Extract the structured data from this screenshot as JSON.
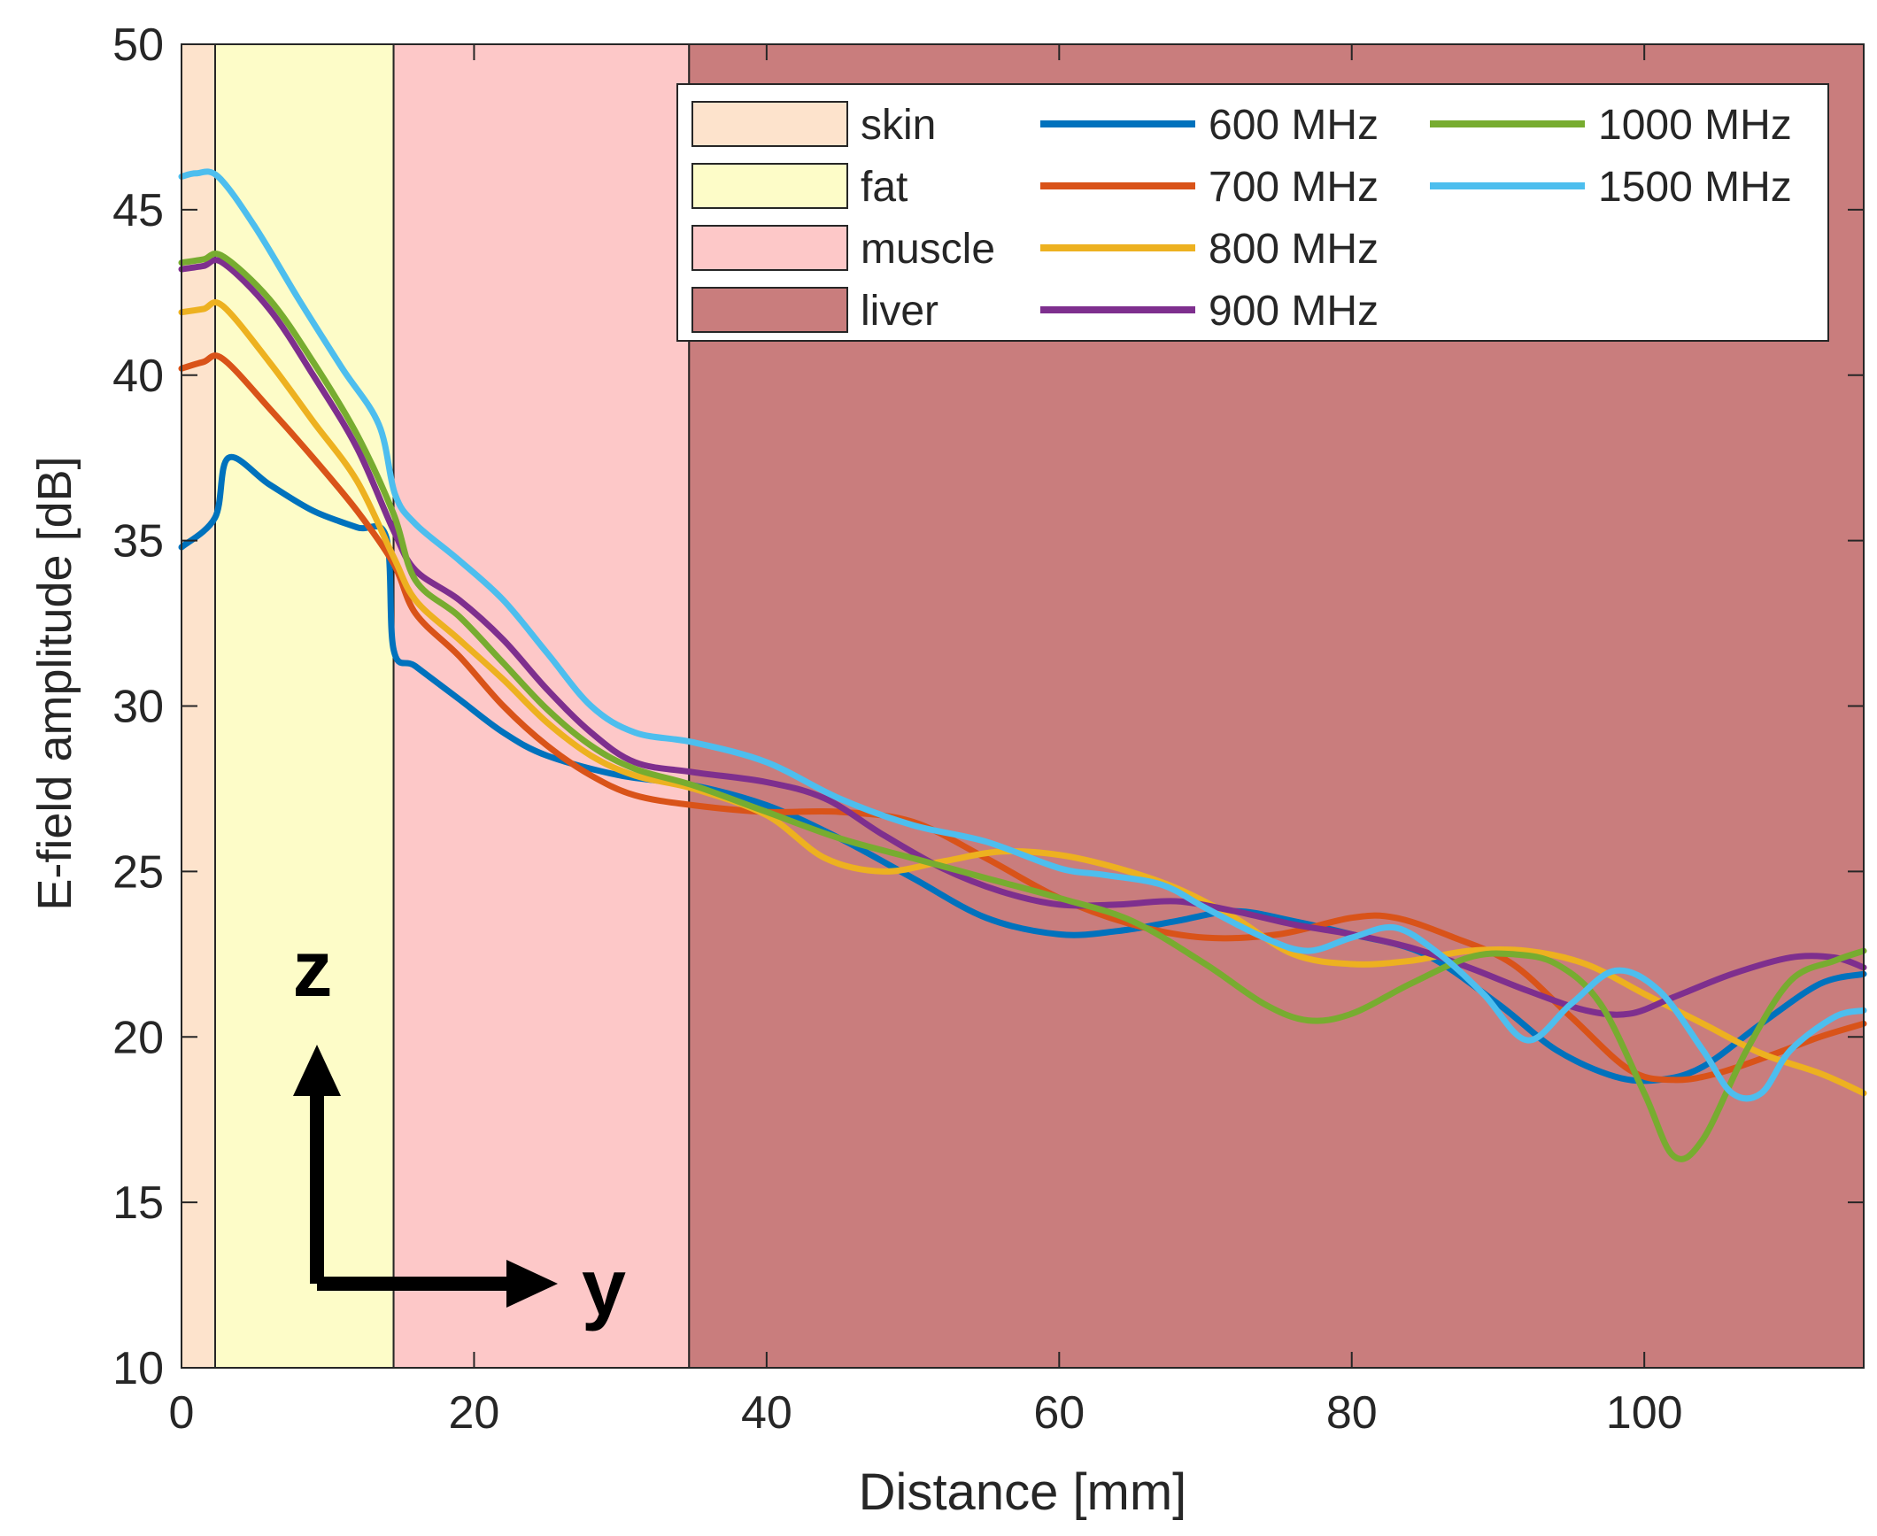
{
  "chart_data": {
    "type": "line",
    "title": "",
    "xlabel": "Distance [mm]",
    "ylabel": "E-field amplitude [dB]",
    "xlim": [
      0,
      115
    ],
    "ylim": [
      10,
      50
    ],
    "xticks": [
      0,
      20,
      40,
      60,
      80,
      100
    ],
    "yticks": [
      10,
      15,
      20,
      25,
      30,
      35,
      40,
      45,
      50
    ],
    "grid": false,
    "legend_position": "top-right",
    "regions": [
      {
        "name": "skin",
        "x0": 0,
        "x1": 2.3,
        "color": "#fde3cc"
      },
      {
        "name": "fat",
        "x0": 2.3,
        "x1": 14.5,
        "color": "#fdfcc8"
      },
      {
        "name": "muscle",
        "x0": 14.5,
        "x1": 34.7,
        "color": "#fdc8c8"
      },
      {
        "name": "liver",
        "x0": 34.7,
        "x1": 115,
        "color": "#c97d7d"
      }
    ],
    "series": [
      {
        "name": "600 MHz",
        "color": "#0072bd",
        "x": [
          0,
          2.3,
          3.2,
          6,
          9,
          12,
          14,
          14.5,
          16,
          19,
          22,
          25,
          30,
          35,
          40,
          45,
          50,
          55,
          60,
          64,
          68,
          72,
          76,
          80,
          85,
          90,
          94,
          98,
          101,
          104,
          108,
          112,
          115
        ],
        "y": [
          34.8,
          35.7,
          37.5,
          36.7,
          35.9,
          35.4,
          35.1,
          31.7,
          31.2,
          30.2,
          29.2,
          28.5,
          27.9,
          27.6,
          27.0,
          26.0,
          24.8,
          23.6,
          23.1,
          23.2,
          23.5,
          23.8,
          23.5,
          23.1,
          22.5,
          21.0,
          19.6,
          18.8,
          18.7,
          19.1,
          20.4,
          21.6,
          21.9
        ]
      },
      {
        "name": "700 MHz",
        "color": "#d95319",
        "x": [
          0,
          1.5,
          2.8,
          6,
          9,
          12,
          14.5,
          16,
          19,
          22,
          25,
          28,
          31,
          35,
          40,
          45,
          50,
          55,
          60,
          65,
          70,
          75,
          80,
          83,
          87,
          91,
          95,
          99,
          102,
          105,
          109,
          112,
          115
        ],
        "y": [
          40.2,
          40.4,
          40.5,
          39.0,
          37.5,
          35.9,
          34.3,
          32.8,
          31.5,
          30.0,
          28.8,
          27.9,
          27.3,
          27.0,
          26.8,
          26.8,
          26.5,
          25.4,
          24.2,
          23.4,
          23.0,
          23.1,
          23.6,
          23.6,
          23.0,
          22.2,
          20.6,
          19.0,
          18.7,
          18.9,
          19.5,
          20.0,
          20.4
        ]
      },
      {
        "name": "800 MHz",
        "color": "#edb120",
        "x": [
          0,
          1.5,
          2.8,
          6,
          9,
          12,
          14.5,
          16,
          19,
          22,
          25,
          28,
          31,
          35,
          40,
          44,
          48,
          52,
          56,
          60,
          64,
          68,
          72,
          76,
          80,
          84,
          88,
          92,
          96,
          100,
          104,
          108,
          112,
          115
        ],
        "y": [
          41.9,
          42.0,
          42.1,
          40.4,
          38.6,
          36.8,
          34.5,
          33.2,
          32.0,
          30.8,
          29.5,
          28.5,
          27.9,
          27.5,
          26.7,
          25.4,
          25.0,
          25.3,
          25.6,
          25.5,
          25.1,
          24.5,
          23.6,
          22.5,
          22.2,
          22.3,
          22.6,
          22.6,
          22.2,
          21.3,
          20.4,
          19.5,
          18.9,
          18.3
        ]
      },
      {
        "name": "900 MHz",
        "color": "#7e2f8e",
        "x": [
          0,
          1.5,
          2.8,
          6,
          9,
          12,
          14.5,
          16,
          19,
          22,
          25,
          28,
          31,
          35,
          40,
          44,
          48,
          52,
          56,
          60,
          64,
          68,
          72,
          76,
          80,
          84,
          88,
          92,
          96,
          99,
          102,
          106,
          110,
          113,
          115
        ],
        "y": [
          43.2,
          43.3,
          43.4,
          42.0,
          40.0,
          37.8,
          35.3,
          34.1,
          33.2,
          32.0,
          30.5,
          29.2,
          28.3,
          28.0,
          27.7,
          27.2,
          26.1,
          25.1,
          24.4,
          24.0,
          24.0,
          24.1,
          23.8,
          23.4,
          23.1,
          22.7,
          22.1,
          21.4,
          20.8,
          20.7,
          21.2,
          21.9,
          22.4,
          22.4,
          22.1
        ]
      },
      {
        "name": "1000 MHz",
        "color": "#77ac30",
        "x": [
          0,
          1.5,
          2.8,
          6,
          9,
          12,
          14.5,
          16,
          19,
          22,
          25,
          28,
          31,
          35,
          40,
          45,
          50,
          55,
          60,
          65,
          70,
          74,
          77,
          80,
          84,
          88,
          91,
          94,
          97,
          100,
          102,
          104,
          107,
          110,
          113,
          115
        ],
        "y": [
          43.4,
          43.5,
          43.6,
          42.3,
          40.4,
          38.2,
          35.8,
          33.8,
          32.7,
          31.3,
          29.9,
          28.8,
          28.1,
          27.6,
          26.8,
          26.0,
          25.4,
          24.8,
          24.2,
          23.5,
          22.2,
          21.0,
          20.5,
          20.7,
          21.6,
          22.4,
          22.5,
          22.2,
          21.0,
          18.3,
          16.4,
          16.9,
          19.6,
          21.7,
          22.3,
          22.6
        ]
      },
      {
        "name": "1500 MHz",
        "color": "#4dbeee",
        "x": [
          0,
          1,
          2.5,
          5,
          8,
          11,
          13.5,
          14.6,
          16,
          19,
          22,
          25,
          28,
          31,
          35,
          40,
          45,
          50,
          55,
          60,
          63,
          67,
          70,
          74,
          77,
          80,
          83,
          86,
          89,
          92,
          95,
          98,
          101,
          104,
          106,
          108,
          110,
          113,
          115
        ],
        "y": [
          46.0,
          46.1,
          46.0,
          44.5,
          42.3,
          40.2,
          38.5,
          36.4,
          35.5,
          34.4,
          33.2,
          31.6,
          30.0,
          29.2,
          28.9,
          28.3,
          27.2,
          26.4,
          25.9,
          25.1,
          24.9,
          24.6,
          23.9,
          23.0,
          22.6,
          23.0,
          23.3,
          22.5,
          21.3,
          19.9,
          21.0,
          22.0,
          21.4,
          19.6,
          18.3,
          18.3,
          19.6,
          20.6,
          20.8
        ]
      }
    ],
    "region_legend": [
      {
        "label": "skin",
        "color": "#fde3cc"
      },
      {
        "label": "fat",
        "color": "#fdfcc8"
      },
      {
        "label": "muscle",
        "color": "#fdc8c8"
      },
      {
        "label": "liver",
        "color": "#c97d7d"
      }
    ],
    "axis_annotation": {
      "vertical": "z",
      "horizontal": "y"
    }
  }
}
